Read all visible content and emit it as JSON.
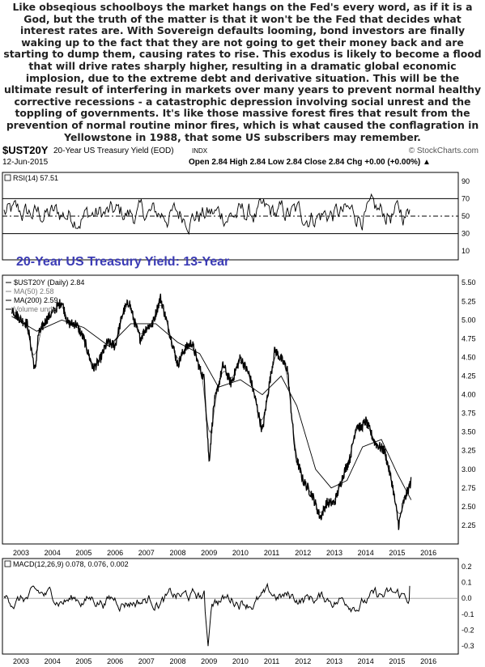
{
  "intro_text": "Like obseqious schoolboys the market hangs on the Fed's every word, as if it is a God, but the truth of the matter is that it won't be the Fed that decides what interest rates are. With Sovereign defaults looming, bond investors are finally waking up to the fact that they are not going to get their money back and are starting to dump them, causing rates to rise. This exodus is likely to become a flood that will drive rates sharply higher, resulting in a dramatic global economic implosion, due to the extreme debt and derivative situation. This will be the ultimate result of interfering in markets over many years to prevent normal healthy corrective recessions - a catastrophic depression involving social unrest and the toppling of governments. It's like those massive forest fires that result from the prevention of normal routine minor fires, which is what caused the conflagration in Yellowstone in 1988, that some US subscribers may remember.",
  "header": {
    "symbol": "$UST20Y",
    "description": "20-Year US Treasury Yield (EOD)",
    "exchange": "INDX",
    "date": "12-Jun-2015",
    "watermark": "© StockCharts.com",
    "ohlc": "Open 2.84  High 2.84  Low 2.84  Close 2.84  Chg +0.00 (+0.00%) ▲"
  },
  "chart_data": [
    {
      "type": "line",
      "panel": "RSI",
      "legend": "RSI(14) 57.51",
      "ylim": [
        0,
        100
      ],
      "ticks": [
        10,
        30,
        50,
        70,
        90
      ],
      "reference_lines": [
        30,
        50,
        70
      ],
      "last_value": 57.51
    },
    {
      "type": "line",
      "panel": "price",
      "annotation": "20-Year US Treasury Yield: 13-Year",
      "legend": [
        "$UST20Y (Daily) 2.84",
        "MA(50) 2.58",
        "MA(200) 2.59",
        "Volume undef"
      ],
      "ylim": [
        2.0,
        5.6
      ],
      "ticks": [
        2.25,
        2.5,
        2.75,
        3.0,
        3.25,
        3.5,
        3.75,
        4.0,
        4.25,
        4.5,
        4.75,
        5.0,
        5.25,
        5.5
      ],
      "x_ticks": [
        "2003",
        "2004",
        "2005",
        "2006",
        "2007",
        "2008",
        "2009",
        "2010",
        "2011",
        "2012",
        "2013",
        "2014",
        "2015",
        "2016"
      ],
      "series": [
        {
          "name": "$UST20Y (Daily)",
          "x": [
            2002.7,
            2003.0,
            2003.2,
            2003.45,
            2003.55,
            2003.8,
            2004.0,
            2004.3,
            2004.5,
            2004.75,
            2005.0,
            2005.3,
            2005.5,
            2005.75,
            2006.0,
            2006.25,
            2006.45,
            2006.6,
            2006.8,
            2007.0,
            2007.2,
            2007.45,
            2007.7,
            2008.0,
            2008.2,
            2008.45,
            2008.7,
            2008.85,
            2009.0,
            2009.15,
            2009.45,
            2009.7,
            2010.0,
            2010.3,
            2010.5,
            2010.7,
            2010.85,
            2011.1,
            2011.5,
            2011.75,
            2012.0,
            2012.3,
            2012.55,
            2012.75,
            2013.0,
            2013.3,
            2013.5,
            2013.7,
            2013.85,
            2014.0,
            2014.3,
            2014.6,
            2014.85,
            2015.05,
            2015.2,
            2015.45
          ],
          "values": [
            5.15,
            5.0,
            4.95,
            4.3,
            4.8,
            5.0,
            5.1,
            5.25,
            4.95,
            4.95,
            4.75,
            4.35,
            4.45,
            4.7,
            4.65,
            5.1,
            5.25,
            5.0,
            4.75,
            4.9,
            4.95,
            5.3,
            4.9,
            4.4,
            4.6,
            4.7,
            4.35,
            4.2,
            3.1,
            3.85,
            4.4,
            4.15,
            4.5,
            4.25,
            3.9,
            3.5,
            3.95,
            4.6,
            4.35,
            3.2,
            2.85,
            2.65,
            2.35,
            2.55,
            2.55,
            2.95,
            3.15,
            3.6,
            3.55,
            3.65,
            3.35,
            3.25,
            2.8,
            2.25,
            2.55,
            2.84
          ]
        },
        {
          "name": "MA(200)",
          "x": [
            2002.7,
            2003.5,
            2004.3,
            2005.0,
            2005.8,
            2006.5,
            2007.3,
            2008.0,
            2008.7,
            2009.3,
            2010.0,
            2010.7,
            2011.3,
            2011.8,
            2012.4,
            2012.9,
            2013.4,
            2013.9,
            2014.5,
            2015.0,
            2015.45
          ],
          "values": [
            5.05,
            4.85,
            5.0,
            4.9,
            4.65,
            4.95,
            4.95,
            4.7,
            4.55,
            4.1,
            4.2,
            4.0,
            4.25,
            3.85,
            3.0,
            2.75,
            2.85,
            3.3,
            3.4,
            2.95,
            2.59
          ]
        }
      ]
    },
    {
      "type": "line",
      "panel": "MACD",
      "legend": "MACD(12,26,9) 0.078, 0.076, 0.002",
      "ylim": [
        -0.35,
        0.25
      ],
      "ticks": [
        0.2,
        0.1,
        0.0,
        -0.1,
        -0.2,
        -0.3
      ],
      "x_ticks": [
        "2003",
        "2004",
        "2005",
        "2006",
        "2007",
        "2008",
        "2009",
        "2010",
        "2011",
        "2012",
        "2013",
        "2014",
        "2015",
        "2016"
      ],
      "last_value": 0.078
    }
  ]
}
